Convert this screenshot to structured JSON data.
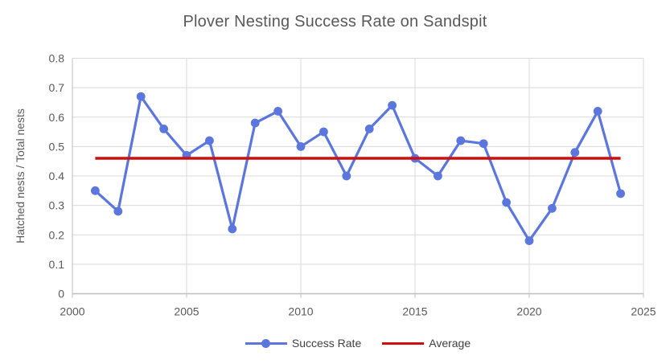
{
  "chart_data": {
    "type": "line",
    "title": "Plover Nesting Success Rate on Sandspit",
    "xlabel": "",
    "ylabel": "Hatched nests / Total nests",
    "x": [
      2001,
      2002,
      2003,
      2004,
      2005,
      2006,
      2007,
      2008,
      2009,
      2010,
      2011,
      2012,
      2013,
      2014,
      2015,
      2016,
      2017,
      2018,
      2019,
      2020,
      2021,
      2022,
      2023,
      2024
    ],
    "series": [
      {
        "name": "Success Rate",
        "color": "#5B76DC",
        "marker": "circle",
        "values": [
          0.35,
          0.28,
          0.67,
          0.56,
          0.47,
          0.52,
          0.22,
          0.58,
          0.62,
          0.5,
          0.55,
          0.4,
          0.56,
          0.64,
          0.46,
          0.4,
          0.52,
          0.51,
          0.31,
          0.18,
          0.29,
          0.48,
          0.62,
          0.34
        ]
      },
      {
        "name": "Average",
        "color": "#CF0E0E",
        "constant_value": 0.46,
        "span": [
          2001,
          2024
        ]
      }
    ],
    "xlim": [
      2000,
      2025
    ],
    "ylim": [
      0,
      0.8
    ],
    "x_ticks": [
      2000,
      2005,
      2010,
      2015,
      2020,
      2025
    ],
    "y_ticks": [
      0,
      0.1,
      0.2,
      0.3,
      0.4,
      0.5,
      0.6,
      0.7,
      0.8
    ],
    "grid": true,
    "legend_position": "bottom",
    "colors": {
      "text": "#595959",
      "legend_text": "#404040",
      "gridline": "#D9D9D9",
      "axis": "#BFBFBF"
    }
  }
}
